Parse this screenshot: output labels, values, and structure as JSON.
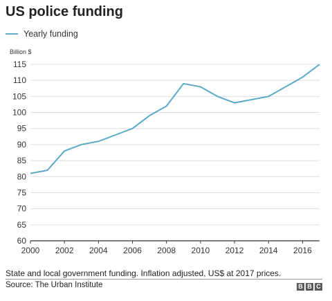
{
  "title": "US police funding",
  "legend": {
    "label": "Yearly funding"
  },
  "note": "State and local government funding. Inflation adjusted, US$ at 2017 prices.",
  "source": "Source: The Urban Institute",
  "logo": [
    "B",
    "B",
    "C"
  ],
  "colors": {
    "line": "#5aa9c9",
    "grid": "#dddddd",
    "axis": "#333333"
  },
  "chart_data": {
    "type": "line",
    "ylabel": "Billion $",
    "ylim": [
      60,
      115
    ],
    "yticks": [
      60,
      65,
      70,
      75,
      80,
      85,
      90,
      95,
      100,
      105,
      110,
      115
    ],
    "xlim": [
      2000,
      2017
    ],
    "xticks": [
      2000,
      2002,
      2004,
      2006,
      2008,
      2010,
      2012,
      2014,
      2016
    ],
    "grid": true,
    "legend_position": "top-left",
    "series": [
      {
        "name": "Yearly funding",
        "x": [
          2000,
          2001,
          2002,
          2003,
          2004,
          2005,
          2006,
          2007,
          2008,
          2009,
          2010,
          2011,
          2012,
          2013,
          2014,
          2015,
          2016,
          2017
        ],
        "y": [
          81,
          82,
          88,
          90,
          91,
          93,
          95,
          99,
          102,
          109,
          108,
          105,
          103,
          104,
          105,
          108,
          111,
          115
        ]
      }
    ]
  }
}
